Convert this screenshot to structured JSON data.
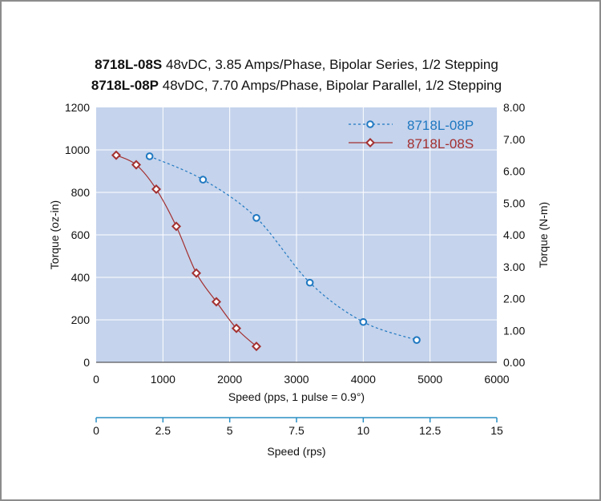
{
  "chart_data": {
    "type": "line",
    "title_lines": [
      {
        "bold": "8718L-08S",
        "rest": " 48vDC, 3.85 Amps/Phase, Bipolar Series, 1/2 Stepping"
      },
      {
        "bold": "8718L-08P",
        "rest": " 48vDC, 7.70 Amps/Phase, Bipolar Parallel, 1/2 Stepping"
      }
    ],
    "xlabel": "Speed (pps, 1 pulse = 0.9°)",
    "ylabel": "Torque (oz-in)",
    "y2label": "Torque (N-m)",
    "x2label": "Speed (rps)",
    "xlim": [
      0,
      6000
    ],
    "ylim": [
      0,
      1200
    ],
    "y2lim": [
      0,
      8
    ],
    "x2lim": [
      0,
      15
    ],
    "x_ticks": [
      "0",
      "1000",
      "2000",
      "3000",
      "4000",
      "5000",
      "6000"
    ],
    "y_ticks": [
      "0",
      "200",
      "400",
      "600",
      "800",
      "1000",
      "1200"
    ],
    "y2_ticks": [
      "0.00",
      "1.00",
      "2.00",
      "3.00",
      "4.00",
      "5.00",
      "6.00",
      "7.00",
      "8.00"
    ],
    "x2_ticks": [
      "0",
      "2.5",
      "5",
      "7.5",
      "10",
      "12.5",
      "15"
    ],
    "grid": true,
    "legend_position": "top-right",
    "plot_bg": "#c5d3ec",
    "series": [
      {
        "name": "8718L-08P",
        "color": "#1f78c1",
        "marker": "circle",
        "line_style": "dashed",
        "x": [
          800,
          1600,
          2400,
          3200,
          4000,
          4800
        ],
        "y": [
          970,
          860,
          680,
          375,
          190,
          105
        ]
      },
      {
        "name": "8718L-08S",
        "color": "#a33030",
        "marker": "diamond",
        "line_style": "solid",
        "x": [
          300,
          600,
          900,
          1200,
          1500,
          1800,
          2100,
          2400
        ],
        "y": [
          975,
          930,
          815,
          640,
          420,
          285,
          160,
          75
        ]
      }
    ]
  }
}
